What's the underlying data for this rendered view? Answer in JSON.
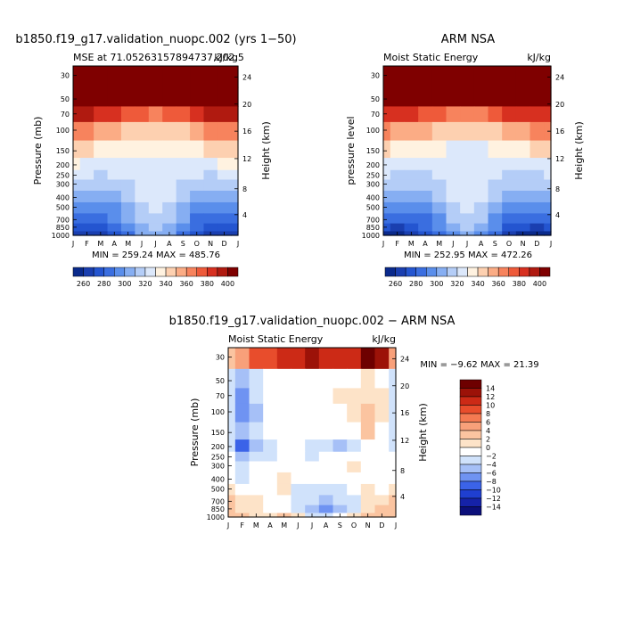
{
  "palettes": {
    "mse": [
      "#0a2a8c",
      "#1a3fb0",
      "#2455d0",
      "#3a6ee0",
      "#5a8eeb",
      "#86aef2",
      "#b4cdf7",
      "#dce8fb",
      "#fff2e0",
      "#fdd0b0",
      "#fbac85",
      "#f7835d",
      "#ee5a3a",
      "#d73020",
      "#b01a10",
      "#7f0000"
    ],
    "diff": [
      "#0b0f7a",
      "#1522a8",
      "#1f3fd0",
      "#3b63e8",
      "#6f93f2",
      "#a6c0f7",
      "#d0e2fb",
      "#ffffff",
      "#fde3c8",
      "#fbc4a0",
      "#f8a07a",
      "#f47a52",
      "#e84d2c",
      "#cc2a16",
      "#9c1208",
      "#6e0000"
    ]
  },
  "months": [
    "J",
    "F",
    "M",
    "A",
    "M",
    "J",
    "J",
    "A",
    "S",
    "O",
    "N",
    "D",
    "J"
  ],
  "pressure_ticks": [
    "30",
    "50",
    "70",
    "100",
    "150",
    "200",
    "250",
    "300",
    "400",
    "500",
    "700",
    "850",
    "1000"
  ],
  "height_ticks": [
    "24",
    "20",
    "16",
    "12",
    "8",
    "4"
  ],
  "panels": [
    {
      "top_title": "b1850.f19_g17.validation_nuopc.002 (yrs 1−50)",
      "subtitle_left": "MSE at 71.05263157894737,202.5",
      "subtitle_right": "kJ/kg",
      "ylabel": "Pressure (mb)",
      "y2label": "Height (km)",
      "minmax": "MIN = 259.24  MAX = 485.76",
      "colorbar_labels": [
        "260",
        "280",
        "300",
        "320",
        "340",
        "360",
        "380",
        "400"
      ]
    },
    {
      "top_title": "ARM NSA",
      "subtitle_left": "Moist Static Energy",
      "subtitle_right": "kJ/kg",
      "ylabel": "pressure level",
      "y2label": "Height (km)",
      "minmax": "MIN = 252.95  MAX = 472.26",
      "colorbar_labels": [
        "260",
        "280",
        "300",
        "320",
        "340",
        "360",
        "380",
        "400"
      ]
    },
    {
      "top_title": "b1850.f19_g17.validation_nuopc.002 − ARM NSA",
      "subtitle_left": "Moist Static Energy",
      "subtitle_right": "kJ/kg",
      "ylabel": "Pressure (mb)",
      "y2label": "Height (km)",
      "minmax": "MIN =  −9.62  MAX =  21.39",
      "colorbar_labels": [
        "14",
        "12",
        "10",
        "8",
        "6",
        "4",
        "2",
        "0",
        "−2",
        "−4",
        "−6",
        "−8",
        "−10",
        "−12",
        "−14"
      ]
    }
  ],
  "chart_data": [
    {
      "type": "heatmap",
      "title": "b1850.f19_g17.validation_nuopc.002 (yrs 1−50)",
      "subtitle": "MSE at 71.05263157894737,202.5",
      "units": "kJ/kg",
      "x": [
        "Jan",
        "Feb",
        "Mar",
        "Apr",
        "May",
        "Jun",
        "Jul",
        "Aug",
        "Sep",
        "Oct",
        "Nov",
        "Dec",
        "Jan"
      ],
      "y_pressure_mb": [
        30,
        50,
        70,
        100,
        150,
        200,
        250,
        300,
        400,
        500,
        700,
        850,
        1000
      ],
      "min": 259.24,
      "max": 485.76,
      "color_levels": [
        260,
        270,
        280,
        290,
        300,
        310,
        320,
        330,
        340,
        350,
        360,
        370,
        380,
        390,
        400
      ],
      "values_by_pressure": [
        [
          485,
          485,
          485,
          485,
          485,
          485,
          485,
          485,
          485,
          485,
          485,
          485,
          485
        ],
        [
          420,
          420,
          420,
          418,
          415,
          412,
          410,
          412,
          415,
          418,
          420,
          420,
          420
        ],
        [
          392,
          390,
          388,
          382,
          375,
          370,
          368,
          370,
          376,
          384,
          390,
          392,
          392
        ],
        [
          362,
          360,
          358,
          352,
          346,
          344,
          342,
          344,
          348,
          354,
          360,
          362,
          362
        ],
        [
          342,
          340,
          338,
          335,
          332,
          331,
          330,
          331,
          333,
          336,
          340,
          342,
          342
        ],
        [
          330,
          328,
          327,
          326,
          325,
          326,
          327,
          326,
          325,
          326,
          328,
          330,
          330
        ],
        [
          322,
          320,
          319,
          320,
          322,
          325,
          326,
          325,
          322,
          320,
          319,
          321,
          322
        ],
        [
          315,
          313,
          312,
          314,
          318,
          324,
          326,
          324,
          318,
          313,
          312,
          314,
          315
        ],
        [
          303,
          302,
          303,
          306,
          312,
          322,
          326,
          322,
          312,
          304,
          302,
          302,
          303
        ],
        [
          294,
          293,
          294,
          298,
          306,
          318,
          324,
          318,
          306,
          296,
          293,
          293,
          294
        ],
        [
          283,
          282,
          284,
          290,
          300,
          312,
          318,
          312,
          300,
          288,
          283,
          282,
          283
        ],
        [
          272,
          271,
          274,
          282,
          294,
          306,
          312,
          306,
          294,
          280,
          272,
          271,
          272
        ],
        [
          262,
          262,
          264,
          272,
          286,
          300,
          306,
          300,
          286,
          270,
          262,
          261,
          262
        ]
      ]
    },
    {
      "type": "heatmap",
      "title": "ARM NSA",
      "subtitle": "Moist Static Energy",
      "units": "kJ/kg",
      "x": [
        "Jan",
        "Feb",
        "Mar",
        "Apr",
        "May",
        "Jun",
        "Jul",
        "Aug",
        "Sep",
        "Oct",
        "Nov",
        "Dec",
        "Jan"
      ],
      "y_pressure_mb": [
        30,
        50,
        70,
        100,
        150,
        200,
        250,
        300,
        400,
        500,
        700,
        850,
        1000
      ],
      "min": 252.95,
      "max": 472.26,
      "color_levels": [
        260,
        270,
        280,
        290,
        300,
        310,
        320,
        330,
        340,
        350,
        360,
        370,
        380,
        390,
        400
      ],
      "values_by_pressure": [
        [
          472,
          472,
          472,
          472,
          472,
          472,
          472,
          472,
          472,
          472,
          472,
          472,
          472
        ],
        [
          416,
          416,
          416,
          414,
          412,
          408,
          406,
          408,
          412,
          414,
          416,
          416,
          416
        ],
        [
          388,
          386,
          384,
          378,
          372,
          366,
          364,
          366,
          372,
          380,
          386,
          388,
          388
        ],
        [
          360,
          358,
          355,
          350,
          344,
          342,
          340,
          342,
          346,
          352,
          358,
          360,
          360
        ],
        [
          340,
          338,
          336,
          333,
          330,
          329,
          328,
          329,
          331,
          334,
          338,
          340,
          340
        ],
        [
          328,
          326,
          325,
          324,
          324,
          325,
          326,
          325,
          324,
          324,
          326,
          328,
          328
        ],
        [
          320,
          318,
          317,
          318,
          321,
          324,
          325,
          324,
          321,
          318,
          317,
          319,
          320
        ],
        [
          313,
          311,
          310,
          312,
          317,
          323,
          325,
          323,
          317,
          311,
          310,
          312,
          313
        ],
        [
          301,
          300,
          301,
          305,
          311,
          321,
          325,
          321,
          311,
          302,
          300,
          300,
          301
        ],
        [
          292,
          291,
          292,
          296,
          305,
          317,
          323,
          317,
          305,
          294,
          291,
          291,
          292
        ],
        [
          281,
          280,
          282,
          288,
          299,
          311,
          317,
          311,
          299,
          286,
          281,
          280,
          281
        ],
        [
          270,
          269,
          272,
          280,
          292,
          305,
          311,
          305,
          292,
          278,
          270,
          269,
          270
        ],
        [
          258,
          257,
          260,
          270,
          284,
          298,
          304,
          298,
          284,
          268,
          258,
          257,
          258
        ]
      ]
    },
    {
      "type": "heatmap",
      "title": "b1850.f19_g17.validation_nuopc.002 − ARM NSA",
      "subtitle": "Moist Static Energy",
      "units": "kJ/kg",
      "x": [
        "Jan",
        "Feb",
        "Mar",
        "Apr",
        "May",
        "Jun",
        "Jul",
        "Aug",
        "Sep",
        "Oct",
        "Nov",
        "Dec",
        "Jan"
      ],
      "y_pressure_mb": [
        30,
        50,
        70,
        100,
        150,
        200,
        250,
        300,
        400,
        500,
        700,
        850,
        1000
      ],
      "min": -9.62,
      "max": 21.39,
      "color_levels": [
        -14,
        -12,
        -10,
        -8,
        -6,
        -4,
        -2,
        0,
        2,
        4,
        6,
        8,
        10,
        12,
        14
      ],
      "values_by_pressure": [
        [
          3,
          5,
          8,
          9,
          10,
          10,
          12,
          10,
          10,
          11,
          20,
          12,
          4
        ],
        [
          -3,
          -6,
          -4,
          -2,
          -2,
          -2,
          -2,
          -2,
          -2,
          -2,
          0,
          -2,
          -3
        ],
        [
          -3,
          -7,
          -4,
          -2,
          -2,
          -2,
          -2,
          -1,
          0,
          0,
          1,
          0,
          -3
        ],
        [
          -3,
          -7,
          -5,
          -2,
          -2,
          -2,
          -2,
          -2,
          -1,
          0,
          2,
          0,
          -3
        ],
        [
          -3,
          -6,
          -4,
          -2,
          -2,
          -2,
          -2,
          -2,
          -2,
          -2,
          2,
          -1,
          -3
        ],
        [
          -3,
          -9,
          -5,
          -3,
          -2,
          -2,
          -4,
          -3,
          -5,
          -3,
          -2,
          -1,
          -3
        ],
        [
          -2,
          -5,
          -4,
          -3,
          -2,
          -2,
          -3,
          -2,
          -2,
          -2,
          -2,
          -1,
          -2
        ],
        [
          -2,
          -3,
          -2,
          -2,
          -2,
          -2,
          -1,
          -1,
          -1,
          0,
          -1,
          -2,
          -2
        ],
        [
          -2,
          -3,
          -2,
          -2,
          0,
          -2,
          -2,
          -2,
          -2,
          -2,
          -2,
          -2,
          -2
        ],
        [
          0,
          -1,
          -2,
          -2,
          0,
          -3,
          -3,
          -3,
          -3,
          -2,
          0,
          -2,
          0
        ],
        [
          2,
          0,
          0,
          -2,
          -2,
          -3,
          -4,
          -6,
          -4,
          -3,
          0,
          1,
          2
        ],
        [
          3,
          1,
          0,
          -2,
          -2,
          -3,
          -5,
          -8,
          -5,
          -3,
          1,
          2,
          3
        ],
        [
          2,
          2,
          1,
          0,
          2,
          0,
          -3,
          -4,
          -2,
          0,
          2,
          2,
          2
        ]
      ]
    }
  ]
}
